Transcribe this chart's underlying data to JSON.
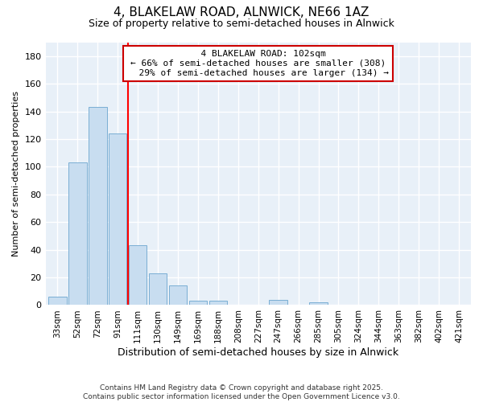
{
  "title1": "4, BLAKELAW ROAD, ALNWICK, NE66 1AZ",
  "title2": "Size of property relative to semi-detached houses in Alnwick",
  "xlabel": "Distribution of semi-detached houses by size in Alnwick",
  "ylabel": "Number of semi-detached properties",
  "categories": [
    "33sqm",
    "52sqm",
    "72sqm",
    "91sqm",
    "111sqm",
    "130sqm",
    "149sqm",
    "169sqm",
    "188sqm",
    "208sqm",
    "227sqm",
    "247sqm",
    "266sqm",
    "285sqm",
    "305sqm",
    "324sqm",
    "344sqm",
    "363sqm",
    "382sqm",
    "402sqm",
    "421sqm"
  ],
  "values": [
    6,
    103,
    143,
    124,
    43,
    23,
    14,
    3,
    3,
    0,
    0,
    4,
    0,
    2,
    0,
    0,
    0,
    0,
    0,
    0,
    0
  ],
  "bar_color": "#c8ddf0",
  "bar_edge_color": "#7aaed4",
  "vline_x": 3.5,
  "vline_label": "4 BLAKELAW ROAD: 102sqm",
  "pct_smaller": "66% of semi-detached houses are smaller (308)",
  "pct_larger": "29% of semi-detached houses are larger (134)",
  "ylim": [
    0,
    190
  ],
  "yticks": [
    0,
    20,
    40,
    60,
    80,
    100,
    120,
    140,
    160,
    180
  ],
  "bg_color": "#ffffff",
  "plot_bg_color": "#e8f0f8",
  "grid_color": "#ffffff",
  "annotation_box_color": "#cc0000",
  "title1_fontsize": 11,
  "title2_fontsize": 9,
  "footnote": "Contains HM Land Registry data © Crown copyright and database right 2025.\nContains public sector information licensed under the Open Government Licence v3.0."
}
